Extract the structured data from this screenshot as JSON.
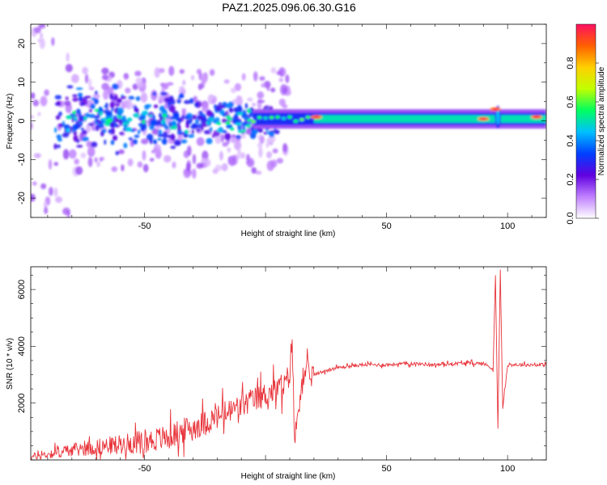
{
  "title": "PAZ1.2025.096.06.30.G16",
  "chart_data": [
    {
      "type": "heatmap",
      "xlabel": "Height of straight line (km)",
      "ylabel": "Frequency (Hz)",
      "xlim": [
        -97,
        116
      ],
      "ylim": [
        -25,
        25
      ],
      "xticks": [
        -50,
        0,
        50,
        100
      ],
      "xtick_labels": [
        "-50",
        "",
        "50",
        "100"
      ],
      "yticks": [
        20,
        10,
        0,
        -10,
        -20
      ],
      "ytick_labels": [
        "20",
        "10",
        "0",
        "-10",
        "-20"
      ],
      "description_features": {
        "steady_line": {
          "x_range": [
            20,
            116
          ],
          "frequency": 0.5
        },
        "noisy_region": {
          "x_range": [
            -97,
            0
          ],
          "frequency_spread": [
            -12,
            12
          ]
        },
        "strong_spots": [
          {
            "x": 21,
            "y": 1
          },
          {
            "x": 90,
            "y": 0.5
          },
          {
            "x": 95,
            "y": 3
          },
          {
            "x": 112,
            "y": 1
          }
        ]
      },
      "colorbar": {
        "label": "Normalized spectral amplitude",
        "range": [
          0.0,
          1.0
        ],
        "ticks": [
          0.0,
          0.2,
          0.4,
          0.6,
          0.8
        ],
        "tick_labels": [
          "0.0",
          "0.2",
          "0.4",
          "0.6",
          "0.8"
        ],
        "colors": [
          "#ffffff",
          "#c080ff",
          "#6000e0",
          "#0040ff",
          "#00c0ff",
          "#00ff60",
          "#c0ff00",
          "#ffd000",
          "#ff6000",
          "#ff1060"
        ]
      }
    },
    {
      "type": "line",
      "xlabel": "Height of straight line (km)",
      "ylabel": "SNR (10 * v/v)",
      "xlim": [
        -97,
        116
      ],
      "ylim": [
        0,
        6800
      ],
      "xticks": [
        -50,
        0,
        50,
        100
      ],
      "xtick_labels": [
        "-50",
        "",
        "50",
        "100"
      ],
      "yticks": [
        2000,
        4000,
        6000
      ],
      "ytick_labels": [
        "2000",
        "4000",
        "6000"
      ],
      "color": "#e8333a",
      "series": [
        {
          "x": [
            -97,
            -90,
            -80,
            -70,
            -60,
            -50,
            -40,
            -35,
            -30,
            -25,
            -20,
            -15,
            -10,
            -5,
            0,
            5,
            8,
            10,
            11,
            12,
            15,
            20,
            25,
            30,
            35,
            40,
            50,
            60,
            70,
            80,
            90,
            94,
            95,
            96,
            97,
            98,
            100,
            105,
            110,
            116
          ],
          "y": [
            100,
            200,
            350,
            450,
            550,
            650,
            800,
            1000,
            1150,
            1300,
            1500,
            1700,
            1900,
            2100,
            2300,
            2500,
            2600,
            3100,
            4300,
            600,
            2900,
            3000,
            3150,
            3250,
            3300,
            3350,
            3350,
            3400,
            3350,
            3400,
            3400,
            3200,
            6500,
            1100,
            6700,
            1800,
            3350,
            3350,
            3350,
            3350
          ]
        }
      ]
    }
  ]
}
